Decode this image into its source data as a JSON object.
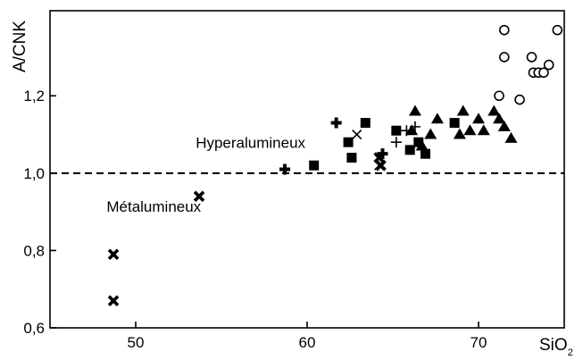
{
  "chart_data": {
    "type": "scatter",
    "xlabel": "SiO",
    "xlabel_subscript": "2",
    "ylabel": "A/CNK",
    "xlim": [
      45,
      75
    ],
    "ylim": [
      0.6,
      1.42
    ],
    "xticks": [
      50,
      60,
      70
    ],
    "xtick_labels": [
      "50",
      "60",
      "70"
    ],
    "yticks": [
      0.6,
      0.8,
      1.0,
      1.2
    ],
    "ytick_labels": [
      "0,6",
      "0,8",
      "1,0",
      "1,2"
    ],
    "reference_line": {
      "y": 1.0,
      "style": "dashed"
    },
    "annotations": [
      {
        "text": "Hyperalumineux",
        "x": 53.5,
        "y": 1.065
      },
      {
        "text": "Métalumineux",
        "x": 48.3,
        "y": 0.9
      }
    ],
    "grid": false,
    "series": [
      {
        "marker": "bold-cross",
        "points": [
          [
            48.7,
            0.79
          ],
          [
            48.7,
            0.67
          ],
          [
            53.7,
            0.94
          ],
          [
            64.3,
            1.02
          ],
          [
            64.2,
            1.04
          ]
        ]
      },
      {
        "marker": "filled-plus",
        "points": [
          [
            58.7,
            1.01
          ],
          [
            61.7,
            1.13
          ],
          [
            64.4,
            1.05
          ]
        ]
      },
      {
        "marker": "filled-square",
        "points": [
          [
            60.4,
            1.02
          ],
          [
            62.4,
            1.08
          ],
          [
            62.6,
            1.04
          ],
          [
            63.4,
            1.13
          ],
          [
            65.2,
            1.11
          ],
          [
            66.0,
            1.06
          ],
          [
            66.5,
            1.08
          ],
          [
            66.9,
            1.05
          ],
          [
            68.6,
            1.13
          ]
        ]
      },
      {
        "marker": "x",
        "points": [
          [
            62.9,
            1.1
          ],
          [
            64.2,
            1.02
          ]
        ]
      },
      {
        "marker": "plus",
        "points": [
          [
            65.2,
            1.08
          ],
          [
            65.8,
            1.11
          ],
          [
            66.3,
            1.12
          ]
        ]
      },
      {
        "marker": "filled-triangle",
        "points": [
          [
            66.3,
            1.16
          ],
          [
            66.1,
            1.11
          ],
          [
            66.7,
            1.07
          ],
          [
            67.2,
            1.1
          ],
          [
            67.6,
            1.14
          ],
          [
            68.9,
            1.1
          ],
          [
            69.1,
            1.16
          ],
          [
            69.5,
            1.11
          ],
          [
            70.0,
            1.14
          ],
          [
            70.3,
            1.11
          ],
          [
            70.9,
            1.16
          ],
          [
            71.2,
            1.14
          ],
          [
            71.5,
            1.12
          ],
          [
            71.9,
            1.09
          ]
        ]
      },
      {
        "marker": "open-circle",
        "points": [
          [
            71.2,
            1.2
          ],
          [
            71.5,
            1.37
          ],
          [
            71.5,
            1.3
          ],
          [
            72.4,
            1.19
          ],
          [
            73.1,
            1.3
          ],
          [
            73.2,
            1.26
          ],
          [
            73.5,
            1.26
          ],
          [
            73.8,
            1.26
          ],
          [
            74.1,
            1.28
          ],
          [
            74.6,
            1.37
          ]
        ]
      }
    ]
  }
}
